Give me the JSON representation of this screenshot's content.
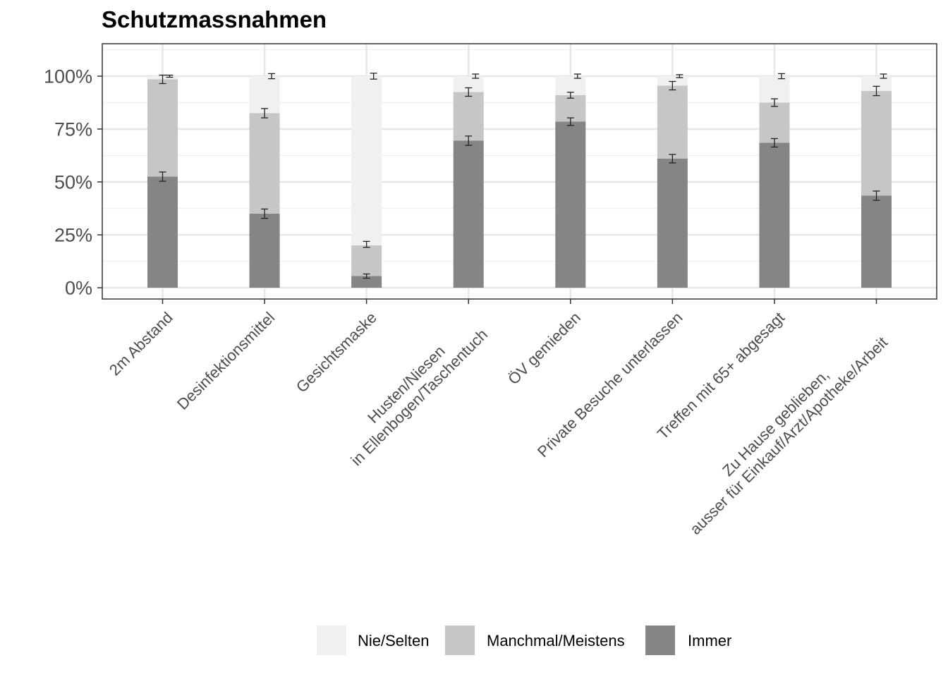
{
  "chart_data": {
    "type": "bar",
    "stacked": true,
    "title": "Schutzmassnahmen",
    "xlabel": "",
    "ylabel": "",
    "ylim": [
      -0.05,
      1.05
    ],
    "yticks": [
      {
        "value": 0,
        "label": "0%"
      },
      {
        "value": 0.25,
        "label": "25%"
      },
      {
        "value": 0.5,
        "label": "50%"
      },
      {
        "value": 0.75,
        "label": "75%"
      },
      {
        "value": 1,
        "label": "100%"
      }
    ],
    "grid": true,
    "legend_position": "bottom",
    "categories": [
      [
        "2m Abstand"
      ],
      [
        "Desinfektionsmittel"
      ],
      [
        "Gesichtsmaske"
      ],
      [
        "Husten/Niesen",
        "in Ellenbogen/Taschentuch"
      ],
      [
        "ÖV gemieden"
      ],
      [
        "Private Besuche unterlassen"
      ],
      [
        "Treffen mit 65+ abgesagt"
      ],
      [
        "Zu Hause geblieben,",
        "ausser für Einkauf/Arzt/Apotheke/Arbeit"
      ]
    ],
    "series": [
      {
        "name": "Nie/Selten",
        "color": "#f0f0f0",
        "values": [
          0.015,
          0.175,
          0.8,
          0.075,
          0.09,
          0.045,
          0.125,
          0.07
        ],
        "error_center": [
          1.0,
          1.0,
          1.0,
          1.0,
          1.0,
          1.0,
          1.0,
          1.0
        ],
        "error_halfwidth": [
          0.005,
          0.012,
          0.014,
          0.01,
          0.01,
          0.007,
          0.012,
          0.01
        ]
      },
      {
        "name": "Manchmal/Meistens",
        "color": "#c6c6c6",
        "values": [
          0.46,
          0.475,
          0.145,
          0.23,
          0.125,
          0.345,
          0.19,
          0.495
        ],
        "error_center": [
          0.985,
          0.825,
          0.205,
          0.925,
          0.91,
          0.955,
          0.875,
          0.93
        ],
        "error_halfwidth": [
          0.02,
          0.022,
          0.014,
          0.02,
          0.014,
          0.02,
          0.018,
          0.022
        ]
      },
      {
        "name": "Immer",
        "color": "#858585",
        "values": [
          0.525,
          0.35,
          0.055,
          0.695,
          0.785,
          0.61,
          0.685,
          0.435
        ],
        "error_center": [
          0.525,
          0.35,
          0.055,
          0.695,
          0.785,
          0.61,
          0.685,
          0.435
        ],
        "error_halfwidth": [
          0.022,
          0.022,
          0.01,
          0.022,
          0.018,
          0.02,
          0.02,
          0.022
        ]
      }
    ]
  }
}
